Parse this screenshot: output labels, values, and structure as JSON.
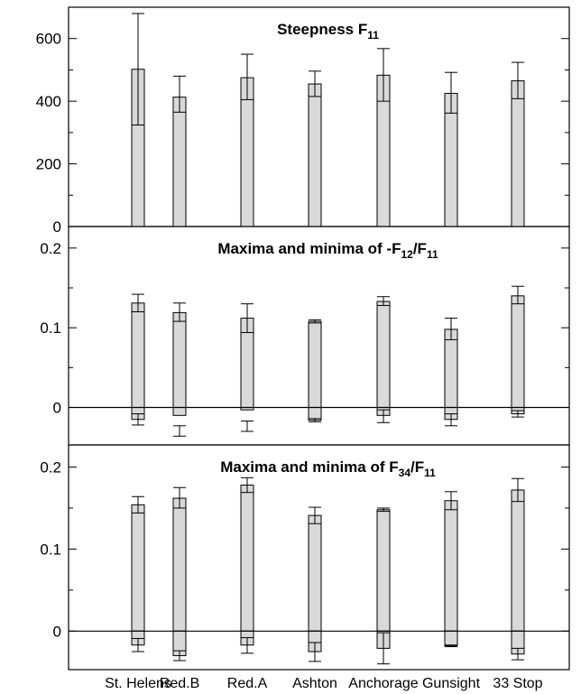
{
  "chart_data": {
    "type": "bar",
    "categories": [
      "St. Helens",
      "Red.B",
      "Red.A",
      "Ashton",
      "Anchorage",
      "Gunsight",
      "33 Stop"
    ],
    "panels": [
      {
        "title_parts": [
          {
            "t": "Steepness F",
            "sub": false
          },
          {
            "t": "11",
            "sub": true
          }
        ],
        "ylim": [
          0,
          700
        ],
        "major_ticks": [
          0,
          200,
          400,
          600
        ],
        "minor_ticks": [
          100,
          300,
          500,
          700
        ],
        "zero_line": false,
        "series": [
          {
            "values": [
              502,
              413,
              475,
              455,
              483,
              425,
              465
            ],
            "err_low": [
              324,
              365,
              405,
              415,
              400,
              362,
              408
            ],
            "err_high": [
              680,
              480,
              550,
              496,
              568,
              492,
              524
            ]
          }
        ]
      },
      {
        "title_parts": [
          {
            "t": "Maxima and minima of -F",
            "sub": false
          },
          {
            "t": "12",
            "sub": true
          },
          {
            "t": "/F",
            "sub": false
          },
          {
            "t": "11",
            "sub": true
          }
        ],
        "ylim": [
          -0.047,
          0.227
        ],
        "major_ticks": [
          0,
          0.1,
          0.2
        ],
        "minor_ticks": [
          -0.05,
          0.05,
          0.15
        ],
        "zero_line": true,
        "series": [
          {
            "name": "maxima",
            "values": [
              0.131,
              0.119,
              0.112,
              0.108,
              0.133,
              0.098,
              0.14
            ],
            "err_low": [
              0.12,
              0.108,
              0.094,
              0.106,
              0.128,
              0.085,
              0.13
            ],
            "err_high": [
              0.142,
              0.131,
              0.13,
              0.11,
              0.139,
              0.112,
              0.152
            ]
          },
          {
            "name": "minima",
            "values": [
              -0.015,
              -0.01,
              -0.003,
              -0.016,
              -0.01,
              -0.015,
              -0.008
            ],
            "err_low": [
              -0.022,
              -0.036,
              -0.03,
              -0.018,
              -0.019,
              -0.023,
              -0.012
            ],
            "err_high": [
              -0.008,
              -0.023,
              -0.017,
              -0.014,
              -0.003,
              -0.008,
              -0.004
            ]
          }
        ]
      },
      {
        "title_parts": [
          {
            "t": "Maxima and minima of F",
            "sub": false
          },
          {
            "t": "34",
            "sub": true
          },
          {
            "t": "/F",
            "sub": false
          },
          {
            "t": "11",
            "sub": true
          }
        ],
        "ylim": [
          -0.047,
          0.227
        ],
        "major_ticks": [
          0,
          0.1,
          0.2
        ],
        "minor_ticks": [
          -0.05,
          0.05,
          0.15
        ],
        "zero_line": true,
        "series": [
          {
            "name": "maxima",
            "values": [
              0.154,
              0.162,
              0.178,
              0.141,
              0.148,
              0.159,
              0.172
            ],
            "err_low": [
              0.144,
              0.15,
              0.169,
              0.131,
              0.146,
              0.148,
              0.158
            ],
            "err_high": [
              0.164,
              0.175,
              0.187,
              0.151,
              0.15,
              0.17,
              0.186
            ]
          },
          {
            "name": "minima",
            "values": [
              -0.017,
              -0.03,
              -0.017,
              -0.025,
              -0.021,
              -0.018,
              -0.028
            ],
            "err_low": [
              -0.025,
              -0.036,
              -0.027,
              -0.037,
              -0.04,
              -0.019,
              -0.035
            ],
            "err_high": [
              -0.009,
              -0.024,
              -0.008,
              -0.014,
              -0.002,
              -0.017,
              -0.021
            ]
          }
        ]
      }
    ]
  }
}
